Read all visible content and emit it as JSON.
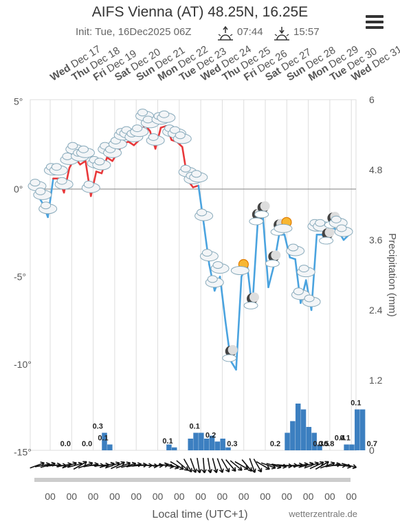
{
  "header": {
    "title": "AIFS Vienna (AT) 48.25N, 16.25E",
    "init": "Init: Tue, 16Dec2025 06Z",
    "sunrise": "07:44",
    "sunset": "15:57"
  },
  "footer": {
    "xlabel": "Local time (UTC+1)",
    "credit": "wetterzentrale.de"
  },
  "colors": {
    "temp_above": "#e8383a",
    "temp_below": "#4aa3df",
    "precip": "#3c7fc0",
    "grid": "#dddddd",
    "zero_line": "#999999"
  },
  "chart_data": {
    "type": "line",
    "days": [
      {
        "dow": "Wed",
        "date": "Dec 17"
      },
      {
        "dow": "Thu",
        "date": "Dec 18"
      },
      {
        "dow": "Fri",
        "date": "Dec 19"
      },
      {
        "dow": "Sat",
        "date": "Dec 20"
      },
      {
        "dow": "Sun",
        "date": "Dec 21"
      },
      {
        "dow": "Mon",
        "date": "Dec 22"
      },
      {
        "dow": "Tue",
        "date": "Dec 23"
      },
      {
        "dow": "Wed",
        "date": "Dec 24"
      },
      {
        "dow": "Thu",
        "date": "Dec 25"
      },
      {
        "dow": "Fri",
        "date": "Dec 26"
      },
      {
        "dow": "Sat",
        "date": "Dec 27"
      },
      {
        "dow": "Sun",
        "date": "Dec 28"
      },
      {
        "dow": "Mon",
        "date": "Dec 29"
      },
      {
        "dow": "Tue",
        "date": "Dec 30"
      },
      {
        "dow": "Wed",
        "date": "Dec 31"
      }
    ],
    "x_tick_labels": [
      "00",
      "00",
      "00",
      "00",
      "00",
      "00",
      "00",
      "00",
      "00",
      "00",
      "00",
      "00",
      "00",
      "00",
      "00"
    ],
    "y_left": {
      "ticks": [
        5,
        0,
        -5,
        -10,
        -15
      ],
      "tick_labels": [
        "5°",
        "0°",
        "-5°",
        "-10°",
        "-15°"
      ],
      "range": [
        -15,
        5
      ]
    },
    "y_right": {
      "label": "Precipitation (mm)",
      "ticks": [
        6,
        4.8,
        3.6,
        2.4,
        1.2,
        0
      ],
      "tick_labels": [
        "6",
        "4.8",
        "3.6",
        "2.4",
        "1.2",
        "0"
      ],
      "range": [
        0,
        6
      ]
    },
    "temperature": {
      "x_days": [
        0.0,
        0.25,
        0.5,
        0.75,
        1.0,
        1.25,
        1.5,
        1.75,
        2.0,
        2.25,
        2.5,
        2.75,
        3.0,
        3.25,
        3.5,
        3.75,
        4.0,
        4.25,
        4.5,
        4.75,
        5.0,
        5.25,
        5.5,
        5.75,
        6.0,
        6.25,
        6.5,
        6.75,
        7.0,
        7.25,
        7.5,
        7.75,
        8.0,
        8.25,
        8.5,
        8.75,
        9.0,
        9.25,
        9.5,
        9.75,
        10.0,
        10.25,
        10.5,
        10.75,
        11.0,
        11.25,
        11.5,
        11.75,
        12.0,
        12.25,
        12.5,
        12.75,
        13.0,
        13.25,
        13.5,
        13.75,
        14.0,
        14.25,
        14.5
      ],
      "values": [
        -0.3,
        -0.8,
        -1.6,
        0.6,
        0.6,
        -0.2,
        1.2,
        1.8,
        1.4,
        1.6,
        -0.4,
        1.0,
        0.9,
        1.8,
        1.6,
        2.1,
        2.6,
        2.7,
        2.5,
        2.8,
        3.7,
        3.3,
        2.3,
        3.5,
        3.6,
        2.8,
        2.7,
        2.4,
        0.5,
        0.1,
        0.2,
        -2.0,
        -4.3,
        -5.8,
        -5.0,
        -7.5,
        -9.8,
        -10.3,
        -5.0,
        -4.2,
        -6.8,
        -2.0,
        -1.6,
        -5.6,
        -4.4,
        -2.6,
        -2.6,
        -3.9,
        -4.0,
        -6.5,
        -5.2,
        -6.9,
        -2.6,
        -2.6,
        -3.1,
        -2.2,
        -2.4,
        -2.9,
        -2.6
      ]
    },
    "precipitation": {
      "x_days": [
        2.5,
        2.75,
        5.5,
        5.75,
        6.5,
        6.75,
        7.0,
        7.25,
        7.5,
        7.75,
        8.0,
        8.25,
        11.0,
        11.25,
        11.5,
        11.75,
        12.0,
        12.25,
        12.5,
        13.75,
        14.0,
        14.25,
        14.5
      ],
      "values": [
        0.3,
        0.1,
        0.1,
        0.05,
        0.2,
        0.3,
        0.3,
        0.2,
        0.25,
        0.15,
        0.2,
        0.05,
        0.3,
        0.5,
        0.8,
        0.7,
        0.4,
        0.3,
        0.1,
        0.1,
        0.1,
        0.7,
        0.7
      ],
      "labels": [
        {
          "day": 1.0,
          "text": "0.0"
        },
        {
          "day": 2.0,
          "text": "0.0"
        },
        {
          "day": 2.5,
          "text": "0.3"
        },
        {
          "day": 2.75,
          "text": "0.1"
        },
        {
          "day": 5.75,
          "text": "0.1"
        },
        {
          "day": 7.0,
          "text": "0.1"
        },
        {
          "day": 7.75,
          "text": "0.2"
        },
        {
          "day": 8.75,
          "text": "0.3"
        },
        {
          "day": 10.75,
          "text": "0.2"
        },
        {
          "day": 12.75,
          "text": "0.3"
        },
        {
          "day": 13.0,
          "text": "0.5"
        },
        {
          "day": 13.25,
          "text": "0.8"
        },
        {
          "day": 13.75,
          "text": "0.4"
        },
        {
          "day": 14.0,
          "text": "0.1"
        },
        {
          "day": 14.5,
          "text": "0.1"
        },
        {
          "day": 15.25,
          "text": "0.7"
        }
      ]
    },
    "weather_symbols": [
      {
        "day": 0.0,
        "type": "cloud"
      },
      {
        "day": 0.25,
        "type": "cloud"
      },
      {
        "day": 0.5,
        "type": "cloud"
      },
      {
        "day": 0.75,
        "type": "cloud"
      },
      {
        "day": 1.0,
        "type": "cloud"
      },
      {
        "day": 1.25,
        "type": "cloud"
      },
      {
        "day": 1.5,
        "type": "cloud"
      },
      {
        "day": 1.75,
        "type": "cloud"
      },
      {
        "day": 2.0,
        "type": "cloud"
      },
      {
        "day": 2.25,
        "type": "cloud"
      },
      {
        "day": 2.5,
        "type": "cloud"
      },
      {
        "day": 2.75,
        "type": "cloud"
      },
      {
        "day": 3.0,
        "type": "cloud"
      },
      {
        "day": 3.25,
        "type": "cloud"
      },
      {
        "day": 3.5,
        "type": "cloud"
      },
      {
        "day": 3.75,
        "type": "cloud"
      },
      {
        "day": 4.0,
        "type": "cloud"
      },
      {
        "day": 4.25,
        "type": "cloud"
      },
      {
        "day": 4.5,
        "type": "cloud"
      },
      {
        "day": 4.75,
        "type": "cloud"
      },
      {
        "day": 5.0,
        "type": "cloud"
      },
      {
        "day": 5.25,
        "type": "cloud"
      },
      {
        "day": 5.5,
        "type": "cloud"
      },
      {
        "day": 5.75,
        "type": "cloud"
      },
      {
        "day": 6.0,
        "type": "cloud"
      },
      {
        "day": 6.25,
        "type": "cloud"
      },
      {
        "day": 6.5,
        "type": "cloud"
      },
      {
        "day": 6.75,
        "type": "cloud"
      },
      {
        "day": 7.0,
        "type": "cloud"
      },
      {
        "day": 7.25,
        "type": "cloud"
      },
      {
        "day": 7.5,
        "type": "cloud"
      },
      {
        "day": 7.75,
        "type": "cloud"
      },
      {
        "day": 8.0,
        "type": "cloud"
      },
      {
        "day": 8.25,
        "type": "cloud"
      },
      {
        "day": 8.5,
        "type": "cloud"
      },
      {
        "day": 9.0,
        "type": "moon"
      },
      {
        "day": 9.5,
        "type": "sun-cloud"
      },
      {
        "day": 10.0,
        "type": "moon"
      },
      {
        "day": 10.25,
        "type": "moon"
      },
      {
        "day": 10.5,
        "type": "moon"
      },
      {
        "day": 11.0,
        "type": "moon"
      },
      {
        "day": 11.25,
        "type": "moon"
      },
      {
        "day": 11.5,
        "type": "sun-cloud"
      },
      {
        "day": 12.0,
        "type": "cloud"
      },
      {
        "day": 12.25,
        "type": "cloud"
      },
      {
        "day": 12.5,
        "type": "cloud"
      },
      {
        "day": 12.75,
        "type": "cloud"
      },
      {
        "day": 13.0,
        "type": "cloud"
      },
      {
        "day": 13.25,
        "type": "cloud"
      },
      {
        "day": 13.5,
        "type": "moon"
      },
      {
        "day": 13.75,
        "type": "moon"
      },
      {
        "day": 14.0,
        "type": "cloud"
      },
      {
        "day": 14.25,
        "type": "cloud"
      }
    ],
    "wind_direction_deg": [
      250,
      260,
      255,
      265,
      270,
      260,
      250,
      255,
      240,
      250,
      260,
      270,
      265,
      255,
      250,
      245,
      250,
      255,
      260,
      265,
      270,
      275,
      270,
      265,
      280,
      290,
      300,
      310,
      330,
      340,
      350,
      355,
      350,
      345,
      340,
      330,
      320,
      310,
      300,
      320,
      340,
      330,
      300,
      290,
      285,
      280,
      275,
      270,
      265,
      260,
      255,
      250,
      245,
      240,
      250,
      260,
      270,
      280,
      285
    ],
    "grid": true,
    "legend": "none"
  }
}
